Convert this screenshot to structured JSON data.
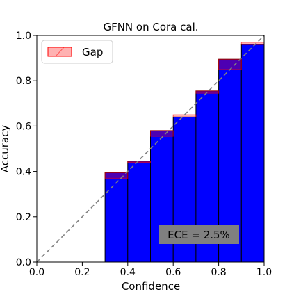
{
  "chart_data": {
    "type": "bar",
    "title": "GFNN on Cora cal.",
    "xlabel": "Confidence",
    "ylabel": "Accuracy",
    "xlim": [
      0.0,
      1.0
    ],
    "ylim": [
      0.0,
      1.0
    ],
    "xticks": [
      "0.0",
      "0.2",
      "0.4",
      "0.6",
      "0.8",
      "1.0"
    ],
    "yticks": [
      "0.0",
      "0.2",
      "0.4",
      "0.6",
      "0.8",
      "1.0"
    ],
    "bin_edges": [
      0.0,
      0.1,
      0.2,
      0.3,
      0.4,
      0.5,
      0.6,
      0.7,
      0.8,
      0.9,
      1.0
    ],
    "series": [
      {
        "kind": "accuracy",
        "values": [
          0.0,
          0.0,
          0.0,
          0.395,
          0.445,
          0.58,
          0.64,
          0.755,
          0.895,
          0.96
        ],
        "color": "#0000ff"
      },
      {
        "name": "Gap",
        "kind": "gap",
        "values": [
          0.0,
          0.0,
          0.0,
          0.37,
          0.44,
          0.555,
          0.65,
          0.745,
          0.85,
          0.97
        ],
        "color": "#ff0000"
      }
    ],
    "diagonal": "dashed gray",
    "legend": {
      "placement": "top-left",
      "labels": [
        "Gap"
      ]
    },
    "annotation": "ECE = 2.5%",
    "annotation_placement": "bottom-right",
    "grid": false
  }
}
